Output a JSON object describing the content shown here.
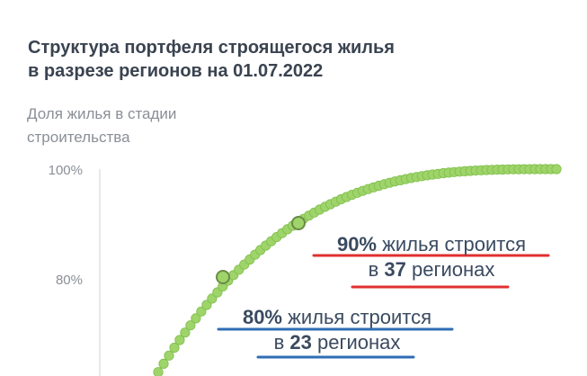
{
  "chart_data": {
    "type": "scatter",
    "title": "Структура портфеля строящегося жилья в разрезе регионов на 01.07.2022",
    "title_lines": [
      "Структура портфеля строящегося жилья",
      "в разрезе регионов на 01.07.2022"
    ],
    "ylabel_lines": [
      "Доля жилья в стадии",
      "строительства"
    ],
    "ylim": [
      60,
      100
    ],
    "y_ticks": [
      "100%",
      "80%"
    ],
    "grid": false,
    "points_color": "#9ed46a",
    "points_edge": "#7fbf4a",
    "highlight_color": "#6c8b46",
    "series": [
      {
        "x_regions_from": 11,
        "x_regions_to": 85,
        "cumulative_share_start": 63,
        "curve": "cumulative share of housing under construction by region, rising steeply then levelling at 100%"
      }
    ],
    "highlights": [
      {
        "regions": 23,
        "share": 80
      },
      {
        "regions": 37,
        "share": 90
      }
    ],
    "annotations": [
      {
        "color": "#e03030",
        "pct": "90%",
        "mid": " жилья строится",
        "prefix": "в ",
        "num": "37",
        "suffix": " регионах"
      },
      {
        "color": "#2f6db5",
        "pct": "80%",
        "mid": " жилья строится",
        "prefix": "в ",
        "num": "23",
        "suffix": " регионах"
      }
    ]
  }
}
